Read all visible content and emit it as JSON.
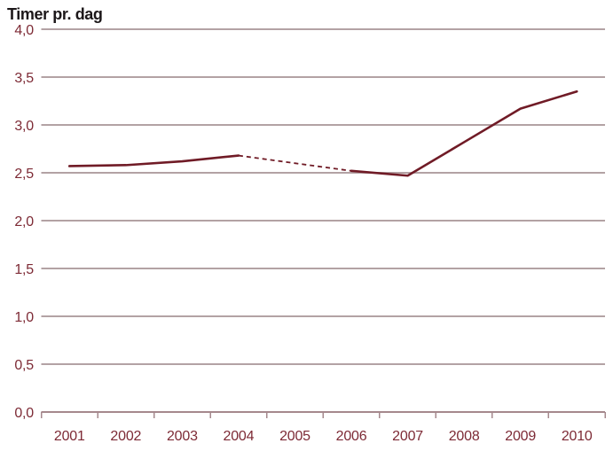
{
  "chart_data": {
    "type": "line",
    "title": "Timer pr. dag",
    "x": [
      "2001",
      "2002",
      "2003",
      "2004",
      "2005",
      "2006",
      "2007",
      "2008",
      "2009",
      "2010"
    ],
    "series": [
      {
        "name": "Timer pr. dag",
        "values": [
          2.57,
          2.58,
          2.62,
          2.68,
          null,
          2.52,
          2.47,
          2.82,
          3.17,
          3.35
        ]
      }
    ],
    "gap_style": "dashed",
    "ylim": [
      0,
      4
    ],
    "y_ticks": [
      {
        "value": 0.0,
        "label": "0,0"
      },
      {
        "value": 0.5,
        "label": "0,5"
      },
      {
        "value": 1.0,
        "label": "1,0"
      },
      {
        "value": 1.5,
        "label": "1,5"
      },
      {
        "value": 2.0,
        "label": "2,0"
      },
      {
        "value": 2.5,
        "label": "2,5"
      },
      {
        "value": 3.0,
        "label": "3,0"
      },
      {
        "value": 3.5,
        "label": "3,5"
      },
      {
        "value": 4.0,
        "label": "4,0"
      }
    ],
    "grid": "horizontal",
    "legend": "none",
    "colors": {
      "line": "#701b26",
      "grid": "#b3a2a4",
      "axis": "#a5888d",
      "tick_label": "#7d2a35",
      "title": "#1c1719",
      "background": "#ffffff"
    }
  }
}
